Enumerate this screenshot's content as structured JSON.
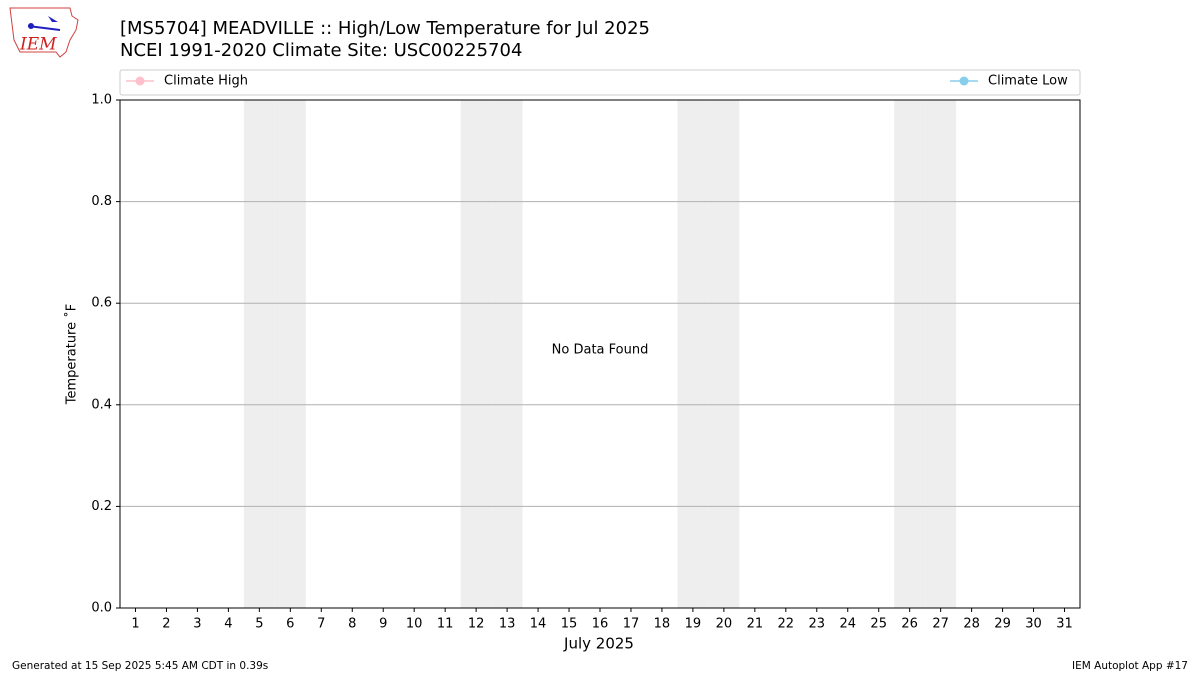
{
  "chart_data": {
    "type": "line",
    "title": "[MS5704] MEADVILLE :: High/Low Temperature for Jul 2025",
    "subtitle": "NCEI 1991-2020 Climate Site: USC00225704",
    "logo_text": "IEM",
    "x_label": "July 2025",
    "y_label": "Temperature ˚F",
    "annotation": "No Data Found",
    "footer_left": "Generated at 15 Sep 2025 5:45 AM CDT in 0.39s",
    "footer_right": "IEM Autoplot App #17",
    "x": [
      1,
      2,
      3,
      4,
      5,
      6,
      7,
      8,
      9,
      10,
      11,
      12,
      13,
      14,
      15,
      16,
      17,
      18,
      19,
      20,
      21,
      22,
      23,
      24,
      25,
      26,
      27,
      28,
      29,
      30,
      31
    ],
    "series": [
      {
        "name": "Climate High",
        "color": "#ffc0cb",
        "values": [
          null,
          null,
          null,
          null,
          null,
          null,
          null,
          null,
          null,
          null,
          null,
          null,
          null,
          null,
          null,
          null,
          null,
          null,
          null,
          null,
          null,
          null,
          null,
          null,
          null,
          null,
          null,
          null,
          null,
          null,
          null
        ]
      },
      {
        "name": "Climate Low",
        "color": "#87ceeb",
        "values": [
          null,
          null,
          null,
          null,
          null,
          null,
          null,
          null,
          null,
          null,
          null,
          null,
          null,
          null,
          null,
          null,
          null,
          null,
          null,
          null,
          null,
          null,
          null,
          null,
          null,
          null,
          null,
          null,
          null,
          null,
          null
        ]
      }
    ],
    "shaded_days": [
      5,
      6,
      12,
      13,
      19,
      20,
      26,
      27
    ],
    "shade_color": "#eeeeee",
    "xlim": [
      0.5,
      31.5
    ],
    "xticks": [
      1,
      2,
      3,
      4,
      5,
      6,
      7,
      8,
      9,
      10,
      11,
      12,
      13,
      14,
      15,
      16,
      17,
      18,
      19,
      20,
      21,
      22,
      23,
      24,
      25,
      26,
      27,
      28,
      29,
      30,
      31
    ],
    "ylim": [
      0,
      1
    ],
    "yticks": [
      {
        "value": 0,
        "label": "0.0"
      },
      0.2,
      0.4,
      0.6,
      0.8,
      {
        "value": 1,
        "label": "1.0"
      }
    ],
    "grid": true
  }
}
